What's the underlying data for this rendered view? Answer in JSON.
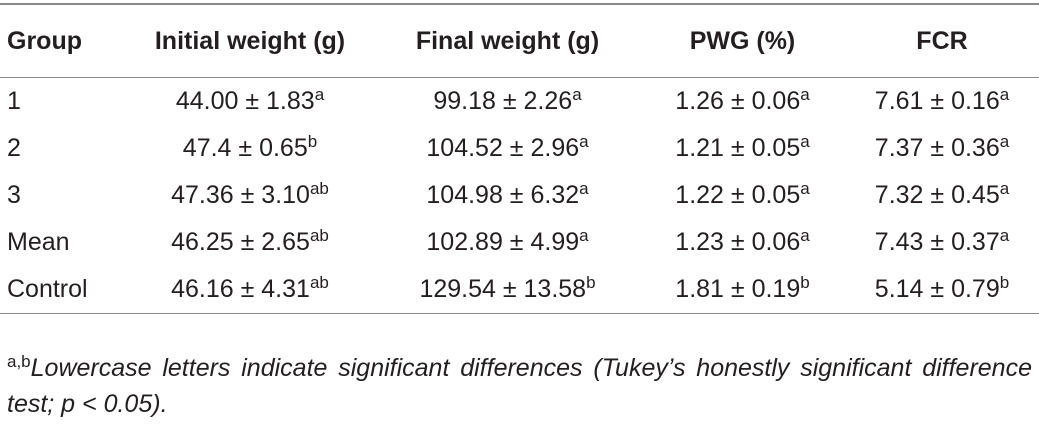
{
  "table": {
    "header": [
      "Group",
      "Initial weight (g)",
      "Final weight (g)",
      "PWG (%)",
      "FCR"
    ],
    "rows": [
      [
        "1",
        {
          "value": "44.00 ± 1.83",
          "sup": "a"
        },
        {
          "value": "99.18 ± 2.26",
          "sup": "a"
        },
        {
          "value": "1.26 ± 0.06",
          "sup": "a"
        },
        {
          "value": "7.61 ± 0.16",
          "sup": "a"
        }
      ],
      [
        "2",
        {
          "value": "47.4 ± 0.65",
          "sup": "b"
        },
        {
          "value": "104.52 ± 2.96",
          "sup": "a"
        },
        {
          "value": "1.21 ± 0.05",
          "sup": "a"
        },
        {
          "value": "7.37 ± 0.36",
          "sup": "a"
        }
      ],
      [
        "3",
        {
          "value": "47.36 ± 3.10",
          "sup": "ab"
        },
        {
          "value": "104.98 ± 6.32",
          "sup": "a"
        },
        {
          "value": "1.22 ± 0.05",
          "sup": "a"
        },
        {
          "value": "7.32 ± 0.45",
          "sup": "a"
        }
      ],
      [
        "Mean",
        {
          "value": "46.25 ± 2.65",
          "sup": "ab"
        },
        {
          "value": "102.89 ± 4.99",
          "sup": "a"
        },
        {
          "value": "1.23 ± 0.06",
          "sup": "a"
        },
        {
          "value": "7.43 ± 0.37",
          "sup": "a"
        }
      ],
      [
        "Control",
        {
          "value": "46.16 ± 4.31",
          "sup": "ab"
        },
        {
          "value": "129.54 ± 13.58",
          "sup": "b"
        },
        {
          "value": "1.81 ± 0.19",
          "sup": "b"
        },
        {
          "value": "5.14 ± 0.79",
          "sup": "b"
        }
      ]
    ]
  },
  "footnote": {
    "sup": "a,b",
    "text": "Lowercase letters indicate significant differences (Tukey’s honestly significant difference test; p < 0.05)."
  }
}
